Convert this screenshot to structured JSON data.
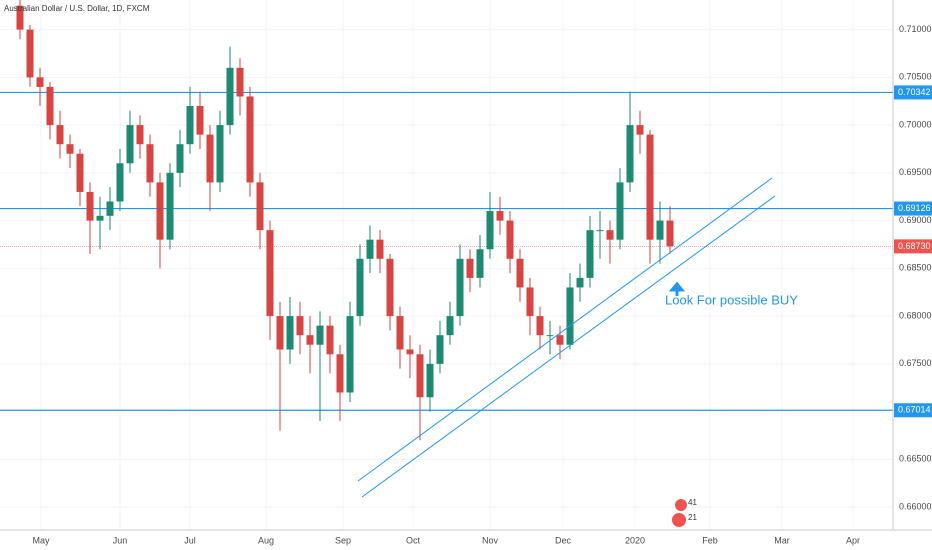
{
  "chart_data": {
    "type": "candlestick",
    "title": "Australian Dollar / U.S. Dollar, 1D, FXCM",
    "annotation": "Look For possible BUY",
    "badges": [
      "41",
      "21"
    ],
    "up_color": "#1e8a72",
    "down_color": "#d64541",
    "ylim": [
      0.6576,
      0.7131
    ],
    "yticks": [
      {
        "value": 0.71,
        "label": "0.71000"
      },
      {
        "value": 0.705,
        "label": "0.70500"
      },
      {
        "value": 0.7,
        "label": "0.70000"
      },
      {
        "value": 0.695,
        "label": "0.69500"
      },
      {
        "value": 0.69,
        "label": "0.69000"
      },
      {
        "value": 0.685,
        "label": "0.68500"
      },
      {
        "value": 0.68,
        "label": "0.68000"
      },
      {
        "value": 0.675,
        "label": "0.67500"
      },
      {
        "value": 0.665,
        "label": "0.66500"
      },
      {
        "value": 0.66,
        "label": "0.66000"
      }
    ],
    "xlim": [
      -2,
      87.3
    ],
    "xticks": [
      {
        "value": 2.1,
        "label": "May"
      },
      {
        "value": 10,
        "label": "Jun"
      },
      {
        "value": 17,
        "label": "Jul"
      },
      {
        "value": 24.6,
        "label": "Aug"
      },
      {
        "value": 32.3,
        "label": "Sep"
      },
      {
        "value": 39.3,
        "label": "Oct"
      },
      {
        "value": 47,
        "label": "Nov"
      },
      {
        "value": 54.3,
        "label": "Dec"
      },
      {
        "value": 61.5,
        "label": "2020"
      },
      {
        "value": 69,
        "label": "Feb"
      },
      {
        "value": 76.2,
        "label": "Mar"
      },
      {
        "value": 83.3,
        "label": "Apr"
      }
    ],
    "grid": true,
    "levels": [
      {
        "value": 0.70342,
        "color": "#2196f3"
      },
      {
        "value": 0.69126,
        "color": "#2196f3"
      },
      {
        "value": 0.67014,
        "color": "#2196f3"
      },
      {
        "value": 0.6873,
        "label": "0.68730",
        "color": "#ef5350",
        "dashed": true
      }
    ],
    "candles": [
      [
        0.7125,
        0.7135,
        0.709,
        0.71
      ],
      [
        0.71,
        0.7105,
        0.704,
        0.705
      ],
      [
        0.705,
        0.706,
        0.702,
        0.704
      ],
      [
        0.704,
        0.7045,
        0.6985,
        0.7
      ],
      [
        0.7,
        0.7015,
        0.6965,
        0.698
      ],
      [
        0.698,
        0.699,
        0.6955,
        0.697
      ],
      [
        0.697,
        0.6975,
        0.6915,
        0.693
      ],
      [
        0.693,
        0.694,
        0.6865,
        0.69
      ],
      [
        0.69,
        0.6925,
        0.687,
        0.6905
      ],
      [
        0.6905,
        0.6935,
        0.689,
        0.692
      ],
      [
        0.692,
        0.6975,
        0.691,
        0.696
      ],
      [
        0.696,
        0.7015,
        0.695,
        0.7
      ],
      [
        0.7,
        0.701,
        0.6965,
        0.698
      ],
      [
        0.698,
        0.699,
        0.6925,
        0.694
      ],
      [
        0.694,
        0.695,
        0.685,
        0.688
      ],
      [
        0.688,
        0.696,
        0.687,
        0.695
      ],
      [
        0.695,
        0.6995,
        0.6935,
        0.698
      ],
      [
        0.698,
        0.704,
        0.697,
        0.702
      ],
      [
        0.702,
        0.7035,
        0.6975,
        0.699
      ],
      [
        0.699,
        0.7,
        0.691,
        0.694
      ],
      [
        0.694,
        0.7015,
        0.693,
        0.7
      ],
      [
        0.7,
        0.7082,
        0.699,
        0.706
      ],
      [
        0.706,
        0.707,
        0.701,
        0.703
      ],
      [
        0.703,
        0.704,
        0.6925,
        0.694
      ],
      [
        0.694,
        0.695,
        0.687,
        0.689
      ],
      [
        0.689,
        0.69,
        0.6775,
        0.68
      ],
      [
        0.68,
        0.6815,
        0.668,
        0.6765
      ],
      [
        0.6765,
        0.682,
        0.675,
        0.68
      ],
      [
        0.68,
        0.6815,
        0.676,
        0.678
      ],
      [
        0.678,
        0.68,
        0.674,
        0.677
      ],
      [
        0.677,
        0.6805,
        0.669,
        0.679
      ],
      [
        0.679,
        0.68,
        0.674,
        0.676
      ],
      [
        0.676,
        0.677,
        0.669,
        0.672
      ],
      [
        0.672,
        0.6815,
        0.671,
        0.68
      ],
      [
        0.68,
        0.6875,
        0.679,
        0.686
      ],
      [
        0.686,
        0.6895,
        0.6845,
        0.688
      ],
      [
        0.688,
        0.689,
        0.6845,
        0.686
      ],
      [
        0.686,
        0.6865,
        0.6785,
        0.68
      ],
      [
        0.68,
        0.681,
        0.6745,
        0.6765
      ],
      [
        0.6765,
        0.678,
        0.6735,
        0.676
      ],
      [
        0.676,
        0.677,
        0.667,
        0.6715
      ],
      [
        0.6715,
        0.6765,
        0.67,
        0.675
      ],
      [
        0.675,
        0.6795,
        0.674,
        0.678
      ],
      [
        0.678,
        0.6815,
        0.677,
        0.68
      ],
      [
        0.68,
        0.6875,
        0.679,
        0.686
      ],
      [
        0.686,
        0.687,
        0.6825,
        0.684
      ],
      [
        0.684,
        0.6885,
        0.683,
        0.687
      ],
      [
        0.687,
        0.693,
        0.686,
        0.691
      ],
      [
        0.691,
        0.6925,
        0.6885,
        0.69
      ],
      [
        0.69,
        0.691,
        0.6845,
        0.686
      ],
      [
        0.686,
        0.687,
        0.6815,
        0.683
      ],
      [
        0.683,
        0.684,
        0.678,
        0.68
      ],
      [
        0.68,
        0.681,
        0.6765,
        0.678
      ],
      [
        0.678,
        0.6795,
        0.676,
        0.678
      ],
      [
        0.678,
        0.679,
        0.6755,
        0.677
      ],
      [
        0.677,
        0.6845,
        0.6765,
        0.683
      ],
      [
        0.683,
        0.6855,
        0.6815,
        0.684
      ],
      [
        0.684,
        0.6905,
        0.683,
        0.689
      ],
      [
        0.689,
        0.691,
        0.686,
        0.689
      ],
      [
        0.689,
        0.69,
        0.6855,
        0.688
      ],
      [
        0.688,
        0.6955,
        0.687,
        0.694
      ],
      [
        0.694,
        0.7035,
        0.693,
        0.7
      ],
      [
        0.7,
        0.7015,
        0.697,
        0.699
      ],
      [
        0.699,
        0.6995,
        0.6855,
        0.688
      ],
      [
        0.688,
        0.692,
        0.6855,
        0.69
      ],
      [
        0.69,
        0.6915,
        0.6865,
        0.6873
      ]
    ]
  }
}
